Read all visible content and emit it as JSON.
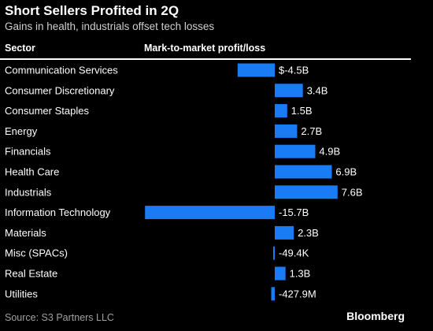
{
  "brand": "Bloomberg",
  "source": "Source: S3 Partners LLC",
  "colors": {
    "bar": "#1a7cf5",
    "background": "#000000",
    "text": "#ffffff"
  },
  "chart_data": {
    "type": "bar",
    "orientation": "horizontal",
    "title": "Short Sellers Profited in 2Q",
    "subtitle": "Gains in health, industrials offset tech losses",
    "category_header": "Sector",
    "value_header": "Mark-to-market profit/loss",
    "unit": "USD billions",
    "categories": [
      "Communication Services",
      "Consumer Discretionary",
      "Consumer Staples",
      "Energy",
      "Financials",
      "Health Care",
      "Industrials",
      "Information Technology",
      "Materials",
      "Misc (SPACs)",
      "Real Estate",
      "Utilities"
    ],
    "values": [
      -4.5,
      3.4,
      1.5,
      2.7,
      4.9,
      6.9,
      7.6,
      -15.7,
      2.3,
      -4.94e-05,
      1.3,
      -0.4279
    ],
    "value_labels": [
      "$-4.5B",
      "3.4B",
      "1.5B",
      "2.7B",
      "4.9B",
      "6.9B",
      "7.6B",
      "-15.7B",
      "2.3B",
      "-49.4K",
      "1.3B",
      "-427.9M"
    ],
    "xlim": [
      -16,
      8
    ]
  }
}
